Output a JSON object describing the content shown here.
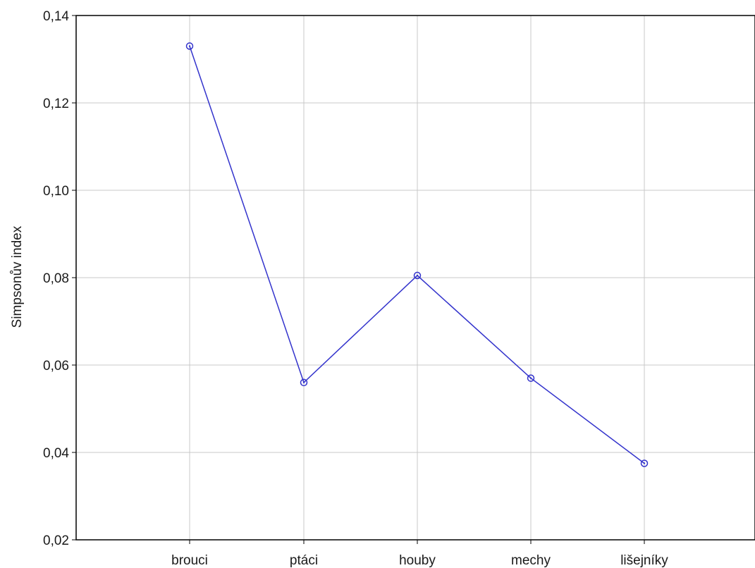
{
  "chart_data": {
    "type": "line",
    "title": "",
    "xlabel": "",
    "ylabel": "Simpsonův index",
    "categories": [
      "brouci",
      "ptáci",
      "houby",
      "mechy",
      "lišejníky"
    ],
    "series": [
      {
        "values": [
          0.133,
          0.056,
          0.0805,
          0.057,
          0.0375
        ]
      }
    ],
    "ylim": [
      0.02,
      0.14
    ],
    "yticks": [
      0.02,
      0.04,
      0.06,
      0.08,
      0.1,
      0.12,
      0.14
    ],
    "ytick_labels": [
      "0,02",
      "0,04",
      "0,06",
      "0,08",
      "0,10",
      "0,12",
      "0,14"
    ],
    "grid": true,
    "legend": "none",
    "colors": {
      "series": "#3333cc",
      "grid": "#c8c8c8",
      "frame": "#000000"
    }
  }
}
